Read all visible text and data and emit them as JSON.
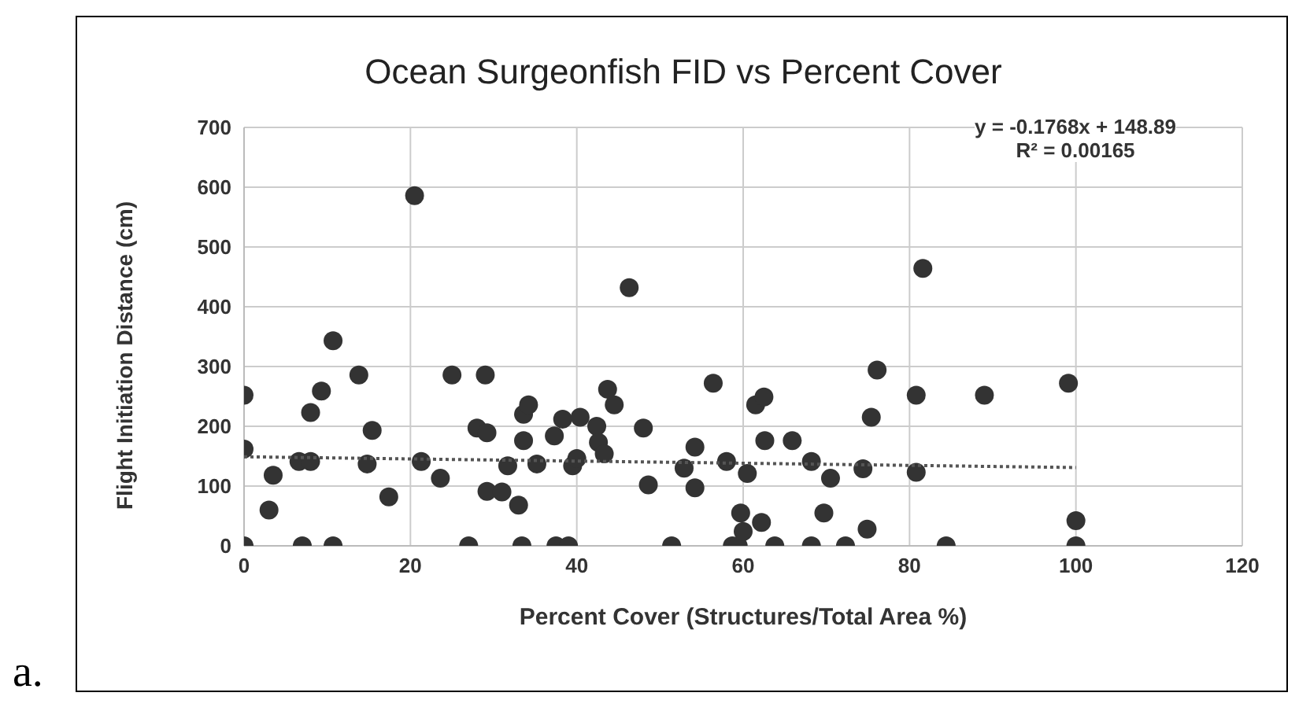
{
  "chart_data": {
    "type": "scatter",
    "title": "Ocean Surgeonfish FID vs Percent Cover",
    "xlabel": "Percent Cover (Structures/Total Area %)",
    "ylabel": "Flight Initiation Distance (cm)",
    "xlim": [
      0,
      120
    ],
    "xticks": [
      0,
      20,
      40,
      60,
      80,
      100,
      120
    ],
    "ylim": [
      0,
      700
    ],
    "yticks": [
      0,
      100,
      200,
      300,
      400,
      500,
      600,
      700
    ],
    "grid": true,
    "legend": false,
    "annotations": [
      "y = -0.1768x + 148.89",
      "R² = 0.00165",
      "a."
    ],
    "series": [
      {
        "type": "scatter",
        "color": "#333333",
        "marker": "circle",
        "x": [
          0,
          0,
          0,
          3,
          3.5,
          7,
          6.6,
          8,
          8,
          9.3,
          10.7,
          10.7,
          13.8,
          15.4,
          14.8,
          17.4,
          20.5,
          21.3,
          23.6,
          25,
          27,
          29,
          28,
          29.2,
          29.2,
          31,
          31.7,
          33,
          33.4,
          33.6,
          33.6,
          34.2,
          35.2,
          37.3,
          38.3,
          37.5,
          39,
          39.5,
          40,
          40.4,
          42.4,
          42.6,
          43.3,
          43.7,
          44.5,
          46.3,
          48,
          48.6,
          51.4,
          52.9,
          54.2,
          54.2,
          56.4,
          58,
          58.7,
          59.4,
          59.7,
          60.5,
          60,
          61.5,
          62.5,
          62.2,
          62.6,
          63.8,
          65.9,
          68.2,
          68.2,
          69.7,
          70.5,
          72.3,
          74.4,
          74.9,
          75.4,
          76.1,
          80.8,
          80.8,
          81.6,
          84.4,
          89,
          99.1,
          100,
          100
        ],
        "values": [
          252,
          162,
          0,
          60,
          118,
          0,
          141,
          141,
          223,
          259,
          343,
          0,
          286,
          193,
          137,
          82,
          586,
          141,
          113,
          286,
          0,
          286,
          197,
          189,
          91,
          90,
          134,
          68,
          0,
          176,
          220,
          236,
          137,
          184,
          212,
          0,
          0,
          134,
          146,
          215,
          200,
          173,
          154,
          262,
          236,
          432,
          197,
          102,
          0,
          130,
          165,
          97,
          272,
          141,
          0,
          0,
          55,
          121,
          24,
          236,
          249,
          39,
          176,
          0,
          176,
          141,
          0,
          55,
          113,
          0,
          129,
          28,
          215,
          294,
          252,
          123,
          464,
          0,
          252,
          272,
          42,
          0
        ]
      },
      {
        "type": "line",
        "color": "#555555",
        "marker": "none",
        "line_style": "dotted",
        "x": [
          0,
          100
        ],
        "values": [
          149,
          131
        ]
      }
    ]
  }
}
